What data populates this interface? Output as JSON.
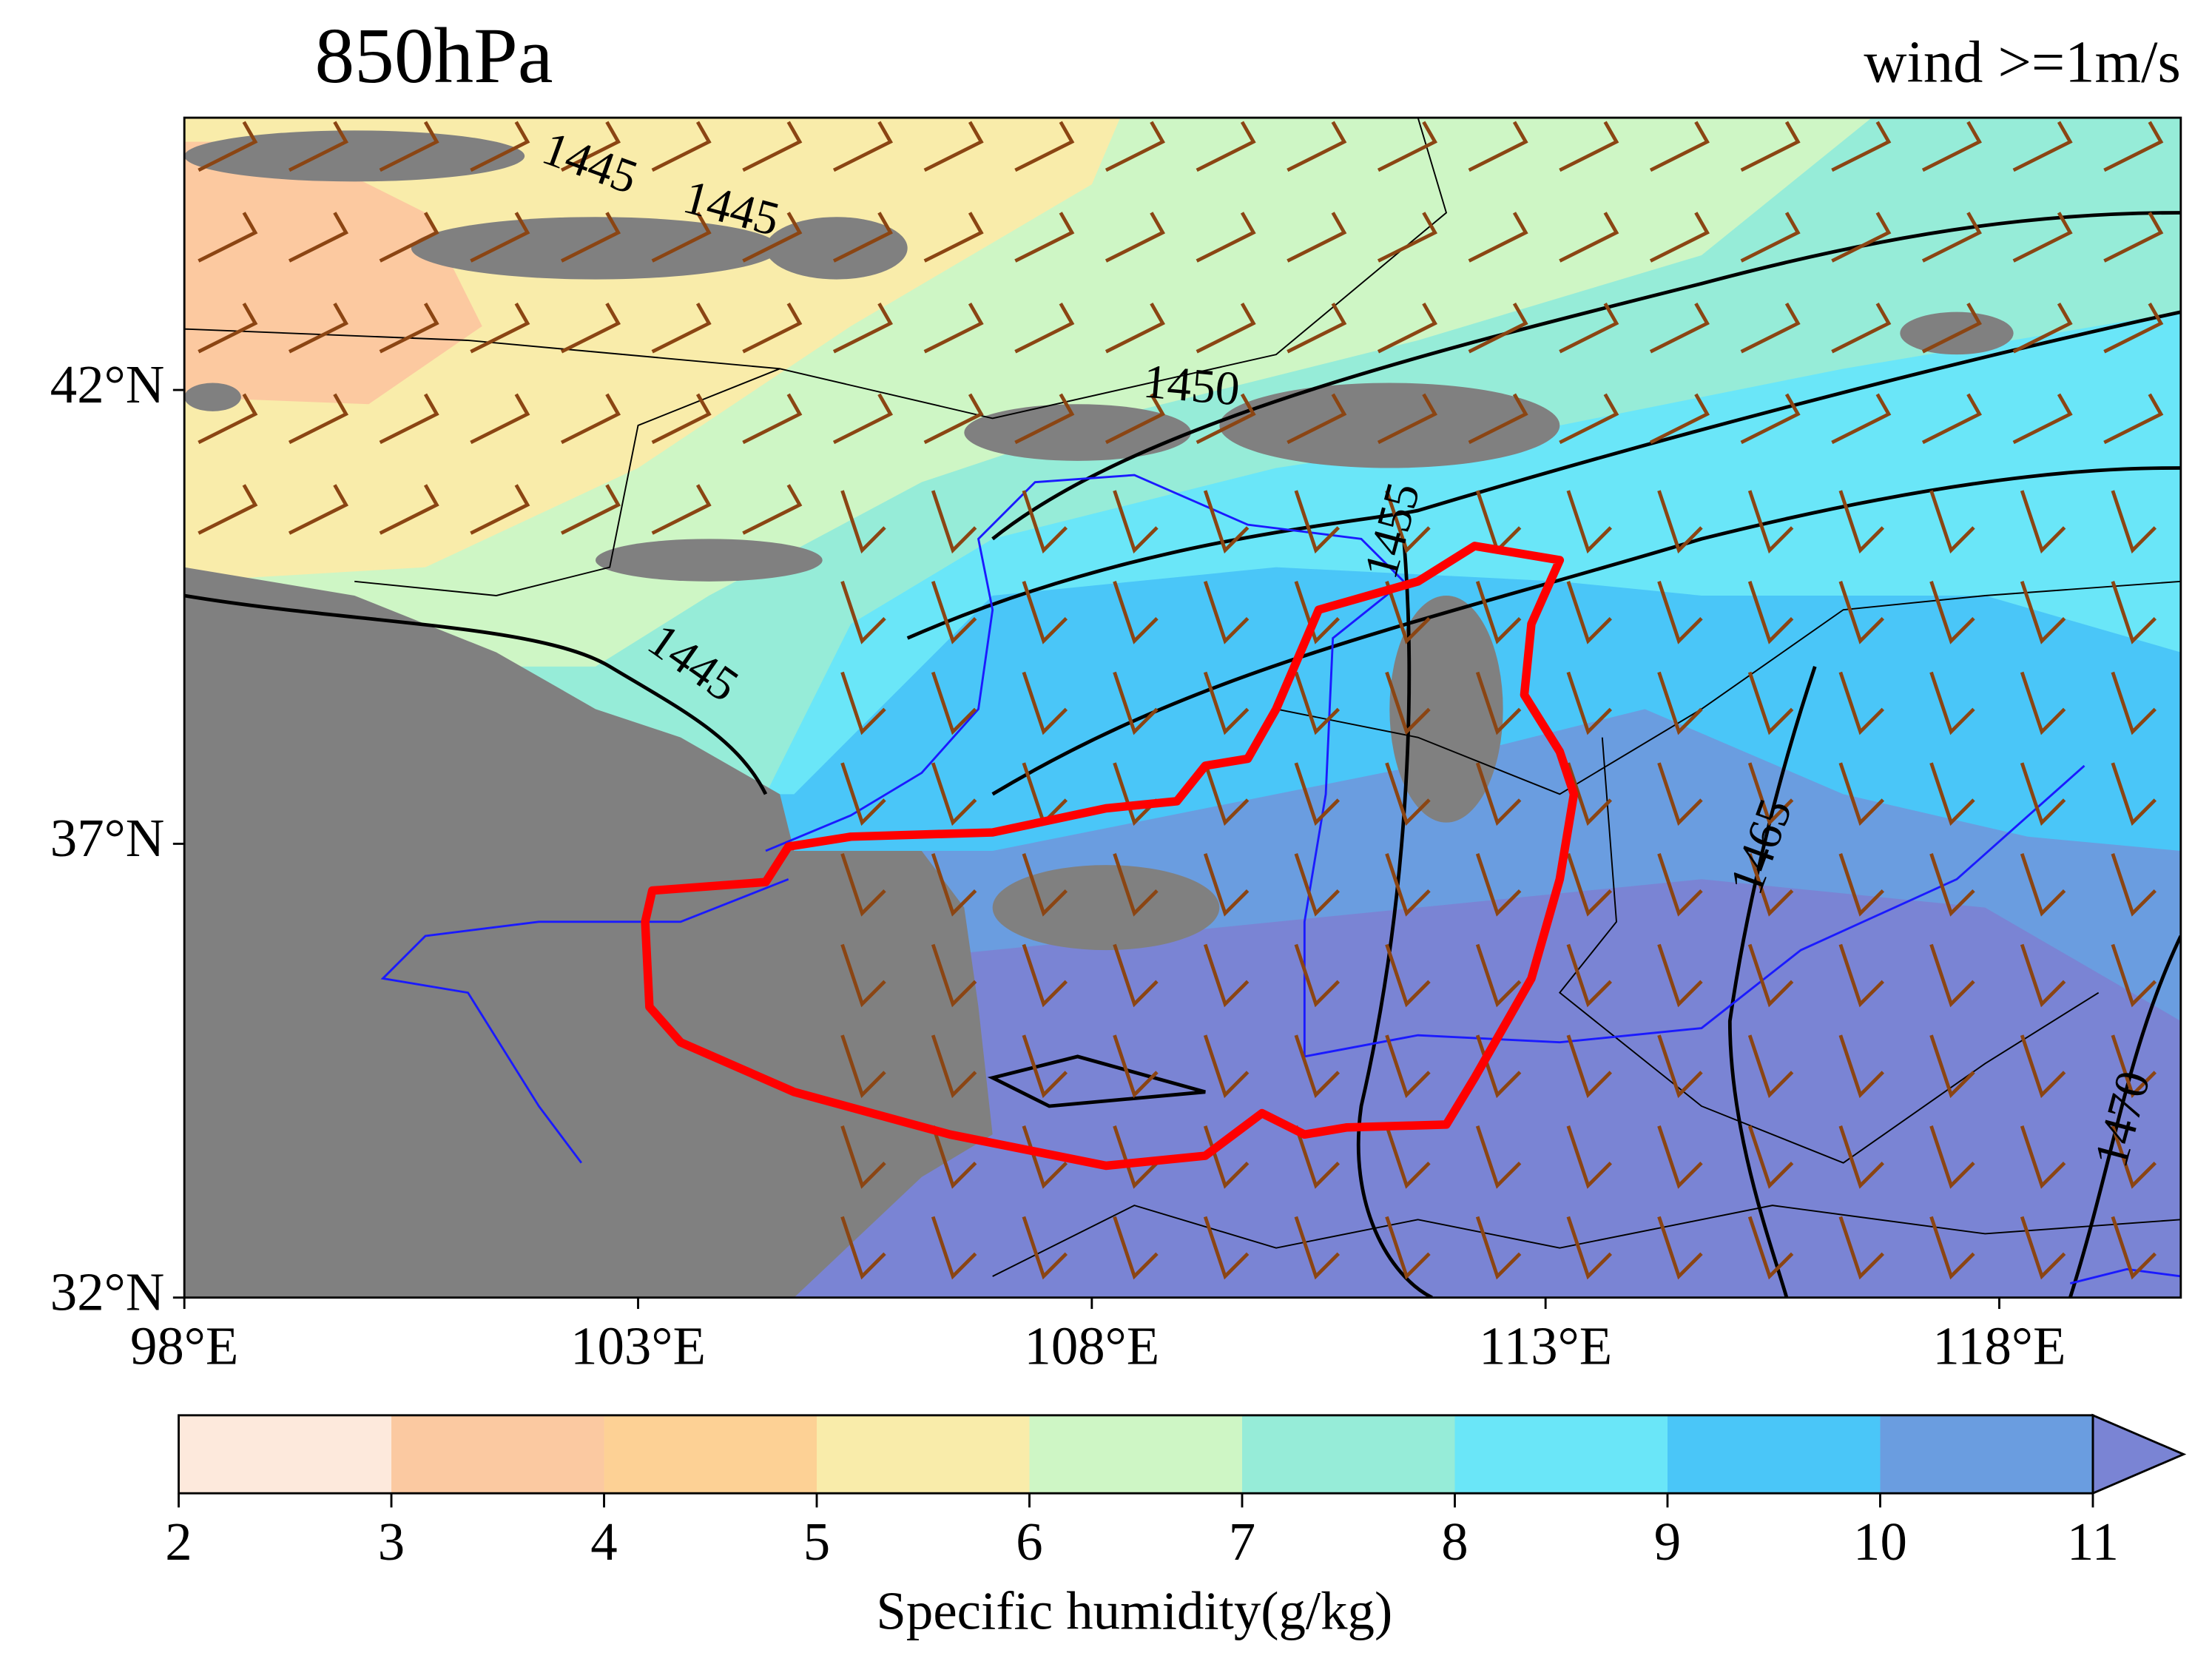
{
  "map": {
    "title": "850hPa",
    "subtitle": "wind >=1m/s",
    "lon_range": [
      98,
      120
    ],
    "lat_range": [
      32,
      45
    ],
    "lon_ticks": [
      {
        "value": 98,
        "label": "98°E"
      },
      {
        "value": 103,
        "label": "103°E"
      },
      {
        "value": 108,
        "label": "108°E"
      },
      {
        "value": 113,
        "label": "113°E"
      },
      {
        "value": 118,
        "label": "118°E"
      }
    ],
    "lat_ticks": [
      {
        "value": 32,
        "label": "32°N"
      },
      {
        "value": 37,
        "label": "37°N"
      },
      {
        "value": 42,
        "label": "42°N"
      }
    ],
    "contour_labels": [
      1445,
      1445,
      1445,
      1450,
      1455,
      1465,
      1470
    ],
    "colorbar": {
      "label": "Specific humidity(g/kg)",
      "levels": [
        2,
        3,
        4,
        5,
        6,
        7,
        8,
        9,
        10,
        11
      ],
      "colors": [
        "#fde9dc",
        "#fbc9a1",
        "#fdd195",
        "#f9ecaa",
        "#cef6c5",
        "#96ecd8",
        "#6ae6f8",
        "#4ac6f8",
        "#6a9de0",
        "#7a84d4"
      ]
    }
  }
}
